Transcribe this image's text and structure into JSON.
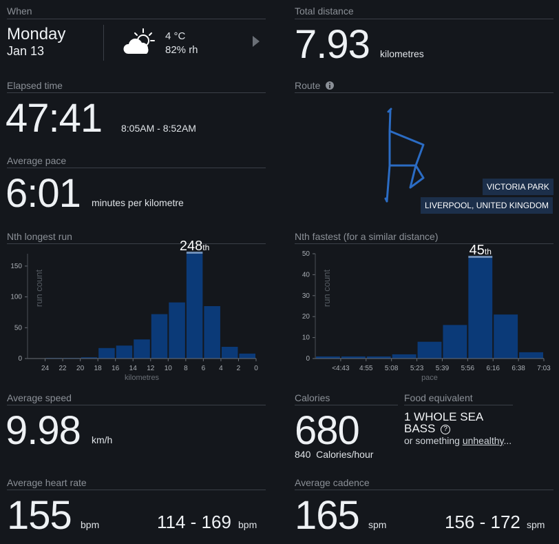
{
  "when": {
    "title": "When",
    "day": "Monday",
    "date": "Jan 13",
    "temp": "4 °C",
    "humidity": "82% rh"
  },
  "total_distance": {
    "title": "Total distance",
    "value": "7.93",
    "unit": "kilometres"
  },
  "elapsed": {
    "title": "Elapsed time",
    "value": "47:41",
    "range": "8:05AM - 8:52AM"
  },
  "route": {
    "title": "Route",
    "place": "VICTORIA PARK",
    "city": "LIVERPOOL, UNITED KINGDOM",
    "icon": "info-icon"
  },
  "pace": {
    "title": "Average pace",
    "value": "6:01",
    "unit": "minutes per kilometre"
  },
  "longest": {
    "title": "Nth longest run",
    "rank": "248",
    "rank_suffix": "th"
  },
  "fastest": {
    "title": "Nth fastest (for a similar distance)",
    "rank": "45",
    "rank_suffix": "th"
  },
  "speed": {
    "title": "Average speed",
    "value": "9.98",
    "unit": "km/h"
  },
  "calories": {
    "title": "Calories",
    "value": "680",
    "rate_value": "840",
    "rate_unit": "Calories/hour"
  },
  "food": {
    "title": "Food equivalent",
    "line1": "1 WHOLE SEA",
    "line2": "BASS",
    "prefix": "or something ",
    "link": "unhealthy",
    "suffix": "..."
  },
  "heart": {
    "title": "Average heart rate",
    "value": "155",
    "unit": "bpm",
    "range": "114 - 169",
    "range_unit": "bpm"
  },
  "cadence": {
    "title": "Average cadence",
    "value": "165",
    "unit": "spm",
    "range": "156 - 172",
    "range_unit": "spm"
  },
  "colors": {
    "bar": "#0b3a78",
    "highlight": "#6f8fb8",
    "route": "#2b6cc4"
  },
  "chart_data": [
    {
      "type": "bar",
      "title": "Nth longest run",
      "ylabel": "run count",
      "xlabel": "kilometres",
      "ylim": [
        0,
        170
      ],
      "yticks": [
        0,
        50,
        100,
        150
      ],
      "xticks": [
        "24",
        "22",
        "20",
        "18",
        "16",
        "14",
        "12",
        "10",
        "8",
        "6",
        "4",
        "2",
        "0"
      ],
      "values": [
        0,
        1,
        1,
        2,
        17,
        21,
        31,
        72,
        91,
        170,
        85,
        19,
        8
      ],
      "highlight_index": 9,
      "annotation": "248th"
    },
    {
      "type": "bar",
      "title": "Nth fastest (for a similar distance)",
      "ylabel": "run count",
      "xlabel": "pace",
      "ylim": [
        0,
        50
      ],
      "yticks": [
        0,
        10,
        20,
        30,
        40,
        50
      ],
      "xticks": [
        "<4:43",
        "4:55",
        "5:08",
        "5:23",
        "5:39",
        "5:56",
        "6:16",
        "6:38",
        "7:03"
      ],
      "values": [
        1,
        1,
        1,
        2,
        8,
        16,
        48,
        21,
        3
      ],
      "highlight_index": 6,
      "annotation": "45th"
    }
  ]
}
